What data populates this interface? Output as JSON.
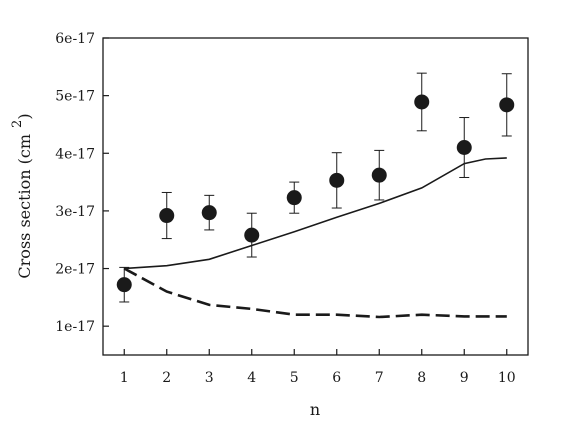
{
  "chart_data": {
    "type": "scatter",
    "xlabel": "n",
    "ylabel": "Cross section (cm",
    "ylabel_superscript": "2",
    "ylabel_close": ")",
    "xlim": [
      0.5,
      10.5
    ],
    "ylim": [
      5e-18,
      6e-17
    ],
    "x_ticks": [
      1,
      2,
      3,
      4,
      5,
      6,
      7,
      8,
      9,
      10
    ],
    "x_tick_labels": [
      "1",
      "2",
      "3",
      "4",
      "5",
      "6",
      "7",
      "8",
      "9",
      "10"
    ],
    "y_ticks": [
      1e-17,
      2e-17,
      3e-17,
      4e-17,
      5e-17,
      6e-17
    ],
    "y_tick_labels": [
      "1e-17",
      "2e-17",
      "3e-17",
      "4e-17",
      "5e-17",
      "6e-17"
    ],
    "grid": false,
    "series": [
      {
        "style": "points-with-error-bars",
        "color": "#1a1a1a",
        "x": [
          1,
          2,
          3,
          4,
          5,
          6,
          7,
          8,
          9,
          10
        ],
        "y": [
          1.72e-17,
          2.92e-17,
          2.97e-17,
          2.58e-17,
          3.23e-17,
          3.53e-17,
          3.62e-17,
          4.89e-17,
          4.1e-17,
          4.84e-17
        ],
        "err": [
          3e-18,
          4e-18,
          3e-18,
          3.8e-18,
          2.7e-18,
          4.8e-18,
          4.3e-18,
          5e-18,
          5.2e-18,
          5.4e-18
        ]
      },
      {
        "style": "solid-line",
        "color": "#1a1a1a",
        "x": [
          1,
          2,
          3,
          4,
          5,
          6,
          7,
          8,
          9,
          9.5,
          10
        ],
        "y": [
          2e-17,
          2.05e-17,
          2.16e-17,
          2.4e-17,
          2.64e-17,
          2.89e-17,
          3.13e-17,
          3.4e-17,
          3.82e-17,
          3.9e-17,
          3.92e-17
        ]
      },
      {
        "style": "dashed-line",
        "color": "#1a1a1a",
        "x": [
          1,
          2,
          3,
          4,
          5,
          6,
          7,
          8,
          9,
          10
        ],
        "y": [
          2e-17,
          1.6e-17,
          1.37e-17,
          1.3e-17,
          1.2e-17,
          1.2e-17,
          1.16e-17,
          1.2e-17,
          1.17e-17,
          1.17e-17
        ]
      }
    ]
  }
}
